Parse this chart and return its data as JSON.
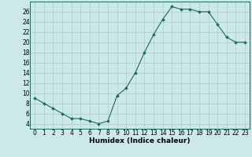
{
  "x": [
    0,
    1,
    2,
    3,
    4,
    5,
    6,
    7,
    8,
    9,
    10,
    11,
    12,
    13,
    14,
    15,
    16,
    17,
    18,
    19,
    20,
    21,
    22,
    23
  ],
  "y": [
    9,
    8,
    7,
    6,
    5,
    5,
    4.5,
    4,
    4.5,
    9.5,
    11,
    14,
    18,
    21.5,
    24.5,
    27,
    26.5,
    26.5,
    26,
    26,
    23.5,
    21,
    20,
    20
  ],
  "xlabel": "Humidex (Indice chaleur)",
  "xlim": [
    -0.5,
    23.5
  ],
  "ylim": [
    3,
    28
  ],
  "yticks": [
    4,
    6,
    8,
    10,
    12,
    14,
    16,
    18,
    20,
    22,
    24,
    26
  ],
  "xticks": [
    0,
    1,
    2,
    3,
    4,
    5,
    6,
    7,
    8,
    9,
    10,
    11,
    12,
    13,
    14,
    15,
    16,
    17,
    18,
    19,
    20,
    21,
    22,
    23
  ],
  "line_color": "#1a6b5a",
  "marker": "D",
  "marker_size": 1.8,
  "bg_color": "#cce8e8",
  "grid_color": "#aacccc",
  "tick_label_fontsize": 5.5,
  "xlabel_fontsize": 6.5
}
